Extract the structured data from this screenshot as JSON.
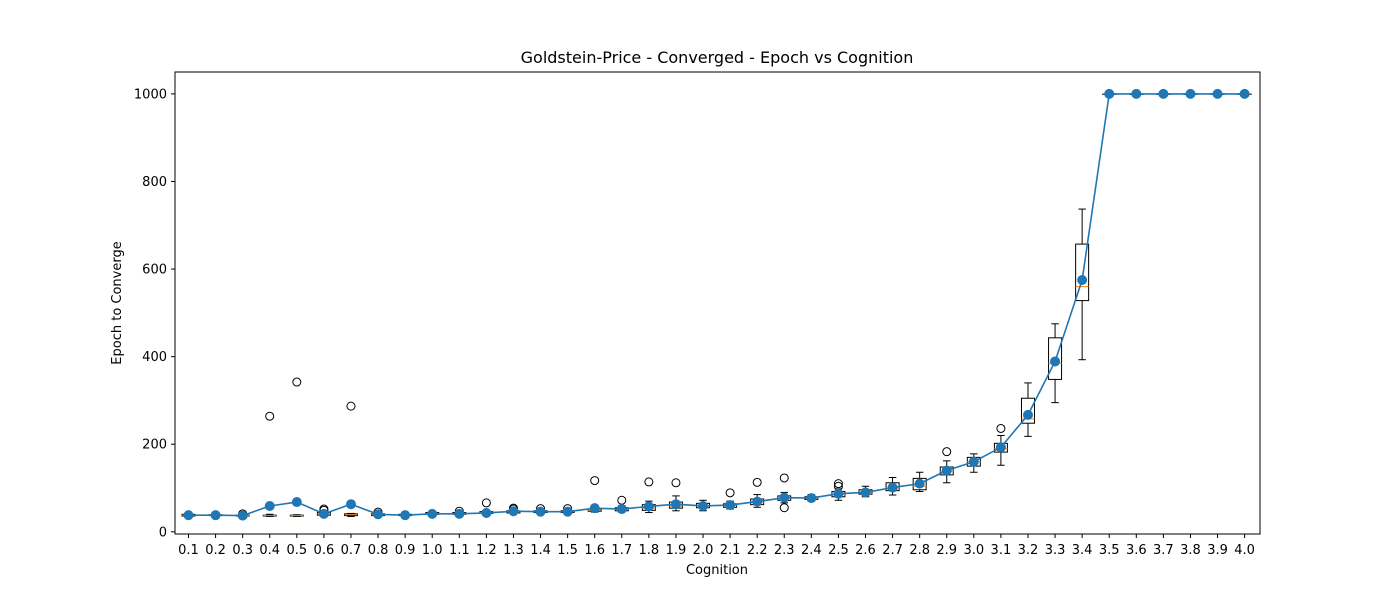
{
  "chart_data": {
    "type": "box",
    "title": "Goldstein-Price - Converged - Epoch vs Cognition",
    "xlabel": "Cognition",
    "ylabel": "Epoch to Converge",
    "ylim": [
      -5,
      1050
    ],
    "yticks": [
      0,
      200,
      400,
      600,
      800,
      1000
    ],
    "categories": [
      "0.1",
      "0.2",
      "0.3",
      "0.4",
      "0.5",
      "0.6",
      "0.7",
      "0.8",
      "0.9",
      "1.0",
      "1.1",
      "1.2",
      "1.3",
      "1.4",
      "1.5",
      "1.6",
      "1.7",
      "1.8",
      "1.9",
      "2.0",
      "2.1",
      "2.2",
      "2.3",
      "2.4",
      "2.5",
      "2.6",
      "2.7",
      "2.8",
      "2.9",
      "3.0",
      "3.1",
      "3.2",
      "3.3",
      "3.4",
      "3.5",
      "3.6",
      "3.7",
      "3.8",
      "3.9",
      "4.0"
    ],
    "boxes": [
      {
        "q1": 36,
        "median": 38,
        "q3": 40,
        "whisker_low": 35,
        "whisker_high": 42,
        "outliers": []
      },
      {
        "q1": 37,
        "median": 38,
        "q3": 39,
        "whisker_low": 36,
        "whisker_high": 40,
        "outliers": []
      },
      {
        "q1": 36,
        "median": 37,
        "q3": 38,
        "whisker_low": 35,
        "whisker_high": 39,
        "outliers": [
          41
        ]
      },
      {
        "q1": 36,
        "median": 37,
        "q3": 38,
        "whisker_low": 35,
        "whisker_high": 40,
        "outliers": [
          264
        ]
      },
      {
        "q1": 36,
        "median": 37,
        "q3": 38,
        "whisker_low": 35,
        "whisker_high": 39,
        "outliers": [
          342
        ]
      },
      {
        "q1": 38,
        "median": 41,
        "q3": 44,
        "whisker_low": 35,
        "whisker_high": 46,
        "outliers": [
          49,
          52
        ]
      },
      {
        "q1": 37,
        "median": 39,
        "q3": 41,
        "whisker_low": 35,
        "whisker_high": 42,
        "outliers": [
          287
        ]
      },
      {
        "q1": 37,
        "median": 39,
        "q3": 41,
        "whisker_low": 35,
        "whisker_high": 42,
        "outliers": [
          45
        ]
      },
      {
        "q1": 37,
        "median": 38,
        "q3": 40,
        "whisker_low": 35,
        "whisker_high": 41,
        "outliers": []
      },
      {
        "q1": 40,
        "median": 42,
        "q3": 44,
        "whisker_low": 38,
        "whisker_high": 46,
        "outliers": []
      },
      {
        "q1": 40,
        "median": 42,
        "q3": 44,
        "whisker_low": 38,
        "whisker_high": 46,
        "outliers": [
          47
        ]
      },
      {
        "q1": 42,
        "median": 44,
        "q3": 46,
        "whisker_low": 40,
        "whisker_high": 48,
        "outliers": [
          66
        ]
      },
      {
        "q1": 43,
        "median": 45,
        "q3": 48,
        "whisker_low": 41,
        "whisker_high": 50,
        "outliers": [
          52,
          54
        ]
      },
      {
        "q1": 44,
        "median": 46,
        "q3": 48,
        "whisker_low": 42,
        "whisker_high": 50,
        "outliers": [
          53
        ]
      },
      {
        "q1": 44,
        "median": 46,
        "q3": 48,
        "whisker_low": 42,
        "whisker_high": 50,
        "outliers": [
          53
        ]
      },
      {
        "q1": 47,
        "median": 49,
        "q3": 52,
        "whisker_low": 45,
        "whisker_high": 54,
        "outliers": [
          117
        ]
      },
      {
        "q1": 48,
        "median": 51,
        "q3": 55,
        "whisker_low": 45,
        "whisker_high": 60,
        "outliers": [
          72
        ]
      },
      {
        "q1": 49,
        "median": 54,
        "q3": 62,
        "whisker_low": 44,
        "whisker_high": 70,
        "outliers": [
          114
        ]
      },
      {
        "q1": 54,
        "median": 58,
        "q3": 68,
        "whisker_low": 48,
        "whisker_high": 82,
        "outliers": [
          112
        ]
      },
      {
        "q1": 55,
        "median": 60,
        "q3": 65,
        "whisker_low": 48,
        "whisker_high": 72,
        "outliers": []
      },
      {
        "q1": 56,
        "median": 60,
        "q3": 64,
        "whisker_low": 52,
        "whisker_high": 70,
        "outliers": [
          89
        ]
      },
      {
        "q1": 62,
        "median": 67,
        "q3": 75,
        "whisker_low": 56,
        "whisker_high": 85,
        "outliers": [
          113
        ]
      },
      {
        "q1": 72,
        "median": 77,
        "q3": 82,
        "whisker_low": 66,
        "whisker_high": 90,
        "outliers": [
          55,
          123
        ]
      },
      {
        "q1": 74,
        "median": 77,
        "q3": 80,
        "whisker_low": 70,
        "whisker_high": 85,
        "outliers": []
      },
      {
        "q1": 80,
        "median": 86,
        "q3": 92,
        "whisker_low": 72,
        "whisker_high": 98,
        "outliers": [
          104,
          110
        ]
      },
      {
        "q1": 86,
        "median": 90,
        "q3": 96,
        "whisker_low": 80,
        "whisker_high": 104,
        "outliers": []
      },
      {
        "q1": 94,
        "median": 100,
        "q3": 112,
        "whisker_low": 84,
        "whisker_high": 124,
        "outliers": []
      },
      {
        "q1": 96,
        "median": 104,
        "q3": 122,
        "whisker_low": 92,
        "whisker_high": 136,
        "outliers": []
      },
      {
        "q1": 130,
        "median": 138,
        "q3": 148,
        "whisker_low": 112,
        "whisker_high": 162,
        "outliers": [
          183
        ]
      },
      {
        "q1": 150,
        "median": 160,
        "q3": 170,
        "whisker_low": 136,
        "whisker_high": 178,
        "outliers": []
      },
      {
        "q1": 182,
        "median": 190,
        "q3": 202,
        "whisker_low": 152,
        "whisker_high": 220,
        "outliers": [
          236
        ]
      },
      {
        "q1": 248,
        "median": 258,
        "q3": 305,
        "whisker_low": 218,
        "whisker_high": 340,
        "outliers": []
      },
      {
        "q1": 348,
        "median": 385,
        "q3": 443,
        "whisker_low": 295,
        "whisker_high": 475,
        "outliers": []
      },
      {
        "q1": 528,
        "median": 560,
        "q3": 657,
        "whisker_low": 393,
        "whisker_high": 737,
        "outliers": []
      },
      {
        "q1": 1000,
        "median": 1000,
        "q3": 1000,
        "whisker_low": 1000,
        "whisker_high": 1000,
        "outliers": []
      },
      {
        "q1": 1000,
        "median": 1000,
        "q3": 1000,
        "whisker_low": 1000,
        "whisker_high": 1000,
        "outliers": []
      },
      {
        "q1": 1000,
        "median": 1000,
        "q3": 1000,
        "whisker_low": 1000,
        "whisker_high": 1000,
        "outliers": []
      },
      {
        "q1": 1000,
        "median": 1000,
        "q3": 1000,
        "whisker_low": 1000,
        "whisker_high": 1000,
        "outliers": []
      },
      {
        "q1": 1000,
        "median": 1000,
        "q3": 1000,
        "whisker_low": 1000,
        "whisker_high": 1000,
        "outliers": []
      },
      {
        "q1": 1000,
        "median": 1000,
        "q3": 1000,
        "whisker_low": 1000,
        "whisker_high": 1000,
        "outliers": []
      }
    ],
    "mean_series": {
      "values": [
        38,
        38,
        37,
        59,
        68,
        41,
        63,
        40,
        38,
        41,
        41,
        43,
        47,
        46,
        46,
        54,
        52,
        58,
        63,
        59,
        61,
        69,
        78,
        77,
        87,
        90,
        101,
        110,
        140,
        160,
        193,
        267,
        389,
        575,
        1000,
        1000,
        1000,
        1000,
        1000,
        1000
      ],
      "color": "#1f77b4"
    },
    "colors": {
      "box": "#000000",
      "median": "#ff7f0e",
      "mean": "#1f77b4"
    },
    "grid": false
  }
}
